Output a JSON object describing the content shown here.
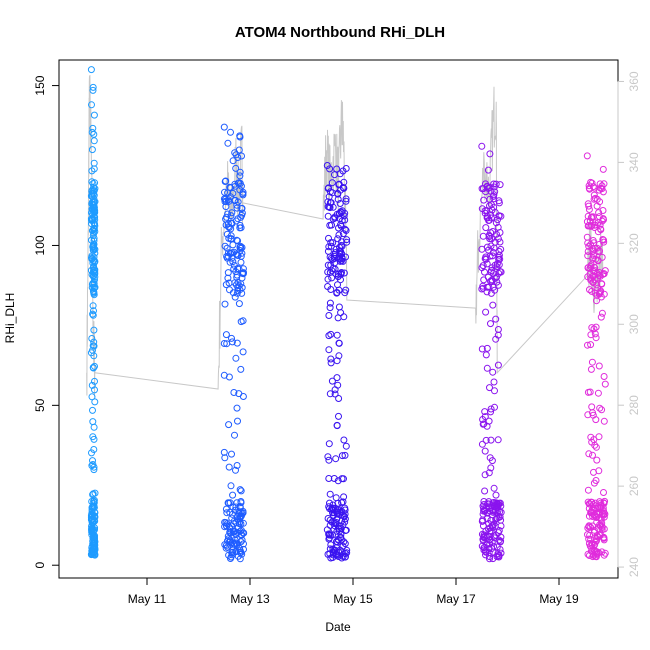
{
  "chart_data": {
    "type": "scatter",
    "title": "ATOM4 Northbound RHi_DLH",
    "xlabel": "Date",
    "ylabel": "RHi_DLH",
    "x_ticks": [
      {
        "day": 11,
        "label": "May 11"
      },
      {
        "day": 13,
        "label": "May 13"
      },
      {
        "day": 15,
        "label": "May 15"
      },
      {
        "day": 17,
        "label": "May 17"
      },
      {
        "day": 19,
        "label": "May 19"
      }
    ],
    "xlim": [
      "2014-05-09 13:45",
      "2014-05-20 06:00"
    ],
    "ylim": [
      -4,
      158
    ],
    "y_ticks": [
      0,
      50,
      100,
      150
    ],
    "y2_ticks": [
      240,
      260,
      280,
      300,
      320,
      340,
      360
    ],
    "y2lim": [
      237.3,
      365.3
    ],
    "grid": false,
    "colors": {
      "flight_1": "#1e9bff",
      "flight_2": "#1f5cff",
      "flight_3": "#3a14f0",
      "flight_4": "#8a14ee",
      "flight_5": "#e02cdc",
      "secondary_line": "#c8c8c8"
    },
    "flights": [
      {
        "date": "May 9-10",
        "start_day": 9.92,
        "end_day": 9.99,
        "y_min": 3,
        "y_max": 155,
        "color_key": "flight_1"
      },
      {
        "date": "May 12-13",
        "start_day": 12.5,
        "end_day": 12.88,
        "y_min": 2,
        "y_max": 137,
        "color_key": "flight_2"
      },
      {
        "date": "May 14-15",
        "start_day": 14.5,
        "end_day": 14.88,
        "y_min": 2,
        "y_max": 125,
        "color_key": "flight_3"
      },
      {
        "date": "May 17-18",
        "start_day": 17.5,
        "end_day": 17.88,
        "y_min": 2,
        "y_max": 131,
        "color_key": "flight_4"
      },
      {
        "date": "May 19-20",
        "start_day": 19.55,
        "end_day": 19.9,
        "y_min": 2,
        "y_max": 128,
        "color_key": "flight_5"
      }
    ],
    "secondary_series_y2": [
      {
        "day": 9.83,
        "y2": 288
      },
      {
        "day": 9.86,
        "y2": 322
      },
      {
        "day": 9.88,
        "y2": 360
      },
      {
        "day": 9.92,
        "y2": 340
      },
      {
        "day": 9.96,
        "y2": 295
      },
      {
        "day": 9.99,
        "y2": 288
      },
      {
        "day": 12.38,
        "y2": 284
      },
      {
        "day": 12.45,
        "y2": 320
      },
      {
        "day": 12.55,
        "y2": 335
      },
      {
        "day": 12.63,
        "y2": 325
      },
      {
        "day": 12.72,
        "y2": 340
      },
      {
        "day": 12.78,
        "y2": 332
      },
      {
        "day": 12.84,
        "y2": 343
      },
      {
        "day": 12.86,
        "y2": 330
      },
      {
        "day": 14.42,
        "y2": 326
      },
      {
        "day": 14.48,
        "y2": 343
      },
      {
        "day": 14.56,
        "y2": 335
      },
      {
        "day": 14.65,
        "y2": 344
      },
      {
        "day": 14.72,
        "y2": 335
      },
      {
        "day": 14.78,
        "y2": 350
      },
      {
        "day": 14.82,
        "y2": 345
      },
      {
        "day": 14.88,
        "y2": 306
      },
      {
        "day": 17.38,
        "y2": 304
      },
      {
        "day": 17.44,
        "y2": 320
      },
      {
        "day": 17.55,
        "y2": 340
      },
      {
        "day": 17.65,
        "y2": 332
      },
      {
        "day": 17.72,
        "y2": 350
      },
      {
        "day": 17.78,
        "y2": 355
      },
      {
        "day": 17.8,
        "y2": 288
      },
      {
        "day": 19.55,
        "y2": 312
      },
      {
        "day": 19.6,
        "y2": 320
      },
      {
        "day": 19.7,
        "y2": 308
      },
      {
        "day": 19.78,
        "y2": 318
      },
      {
        "day": 19.85,
        "y2": 312
      }
    ]
  }
}
